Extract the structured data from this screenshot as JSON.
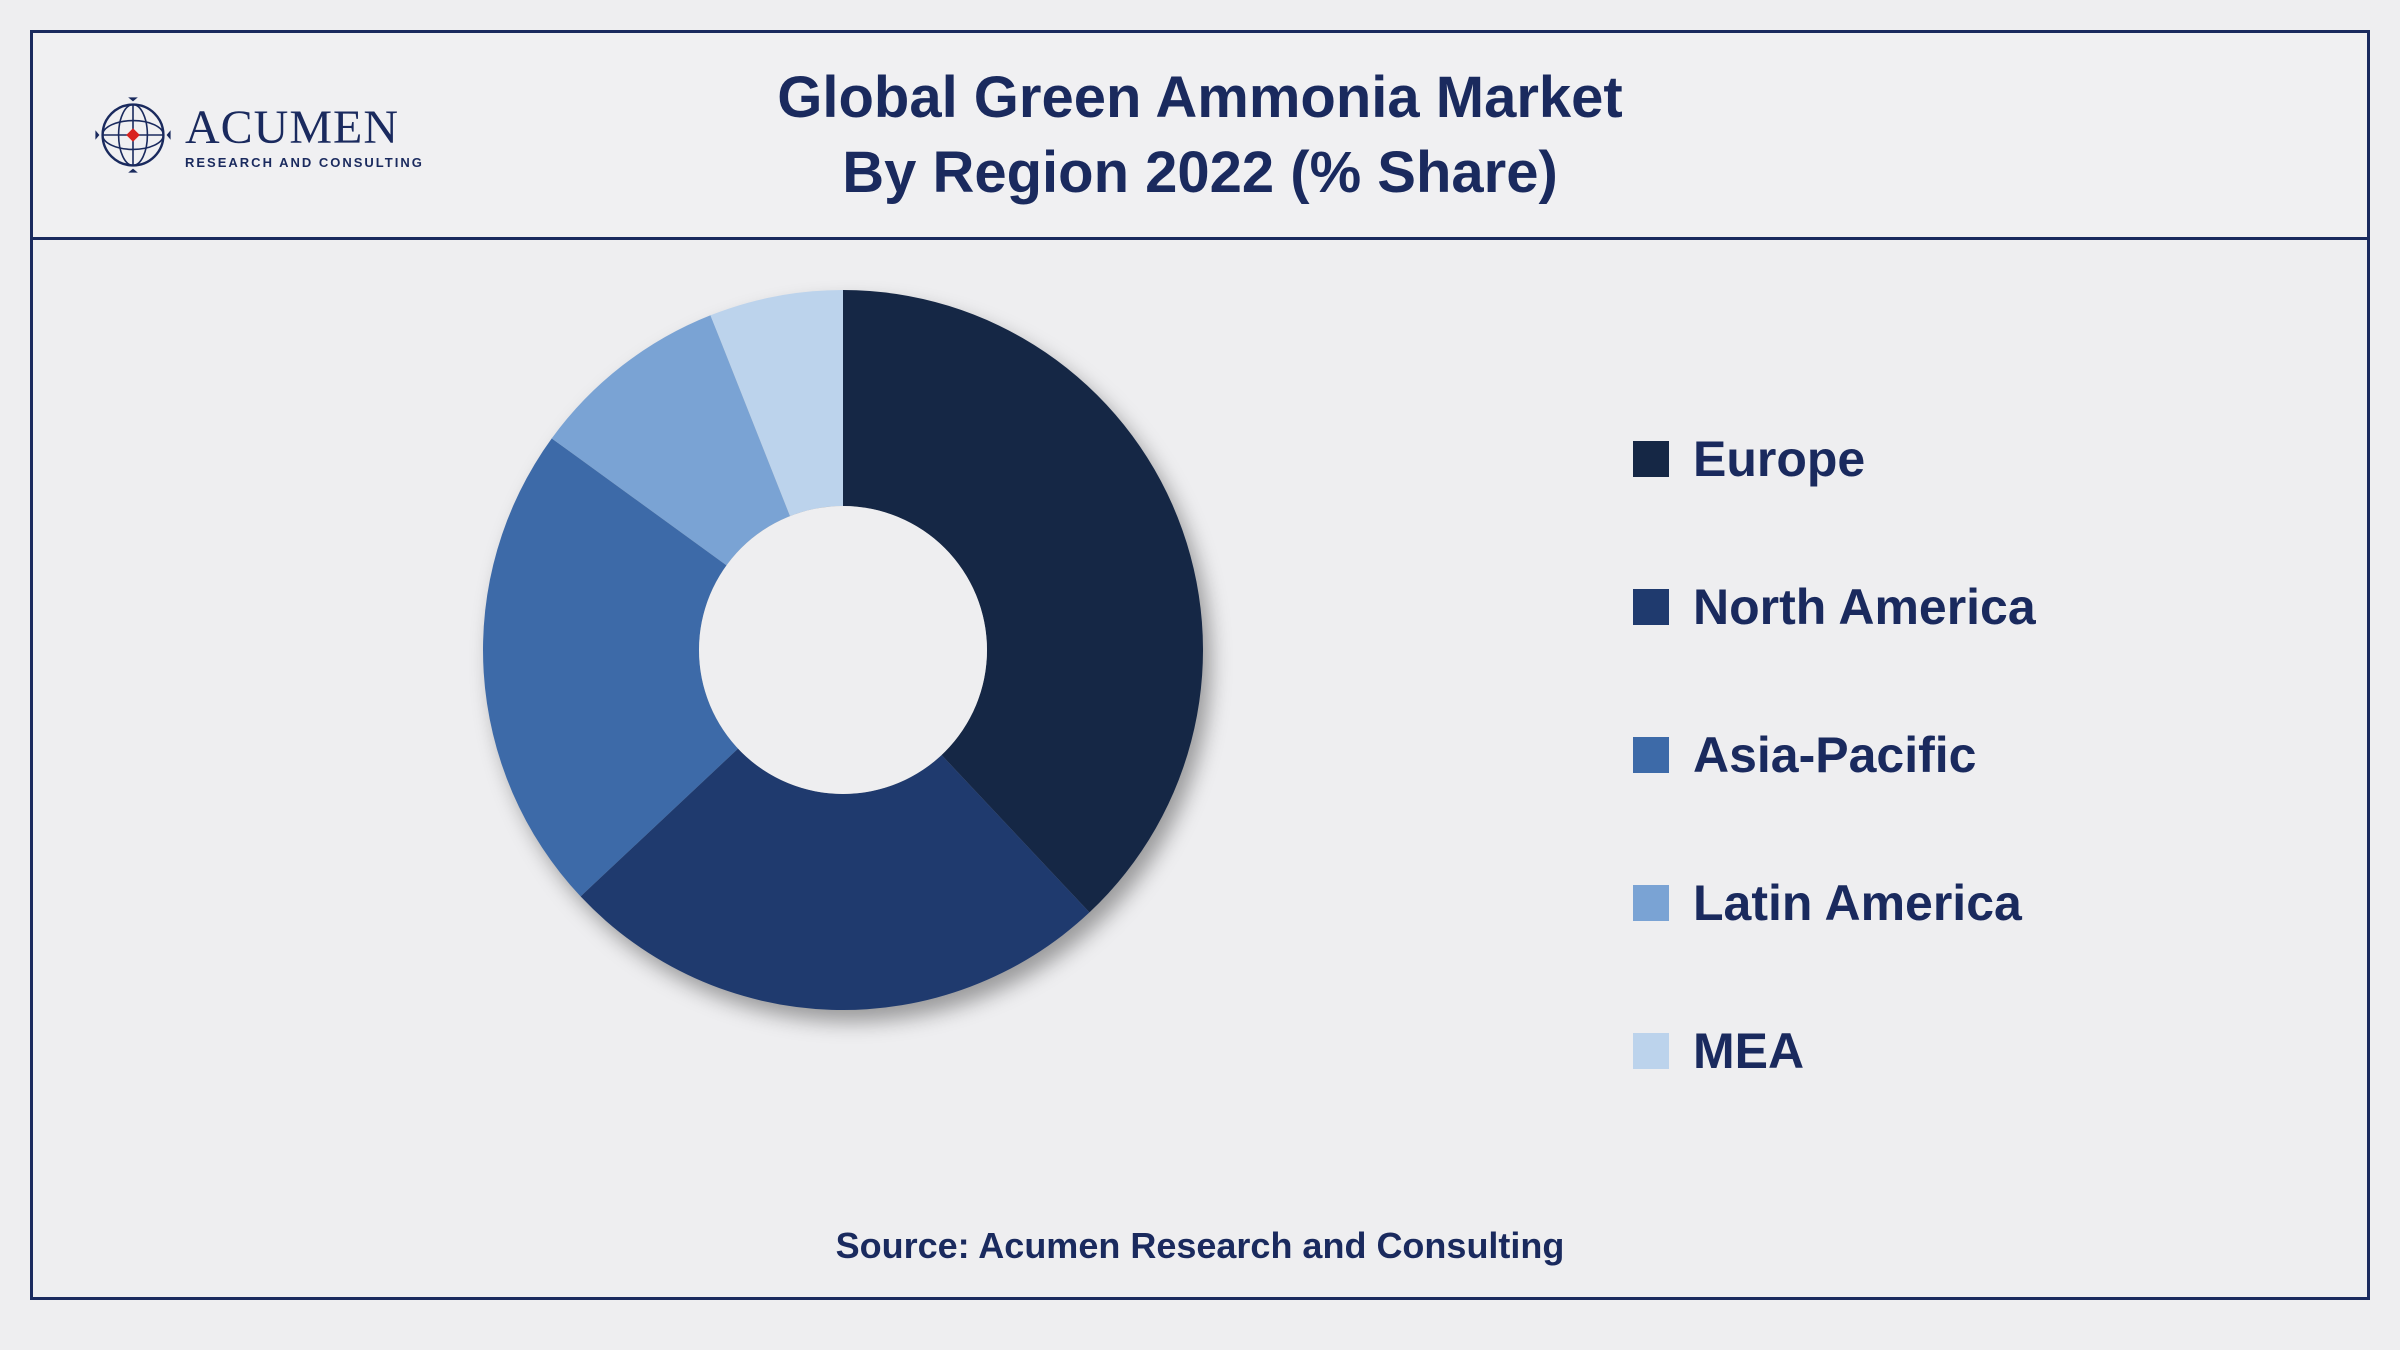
{
  "logo": {
    "main": "ACUMEN",
    "sub": "RESEARCH AND CONSULTING",
    "globe_color": "#1a2a5e",
    "diamond_color": "#d9231f"
  },
  "title": {
    "line1": "Global Green Ammonia  Market",
    "line2": "By Region 2022 (% Share)",
    "fontsize": 58,
    "color": "#1a2a5e"
  },
  "chart": {
    "type": "donut",
    "inner_radius_pct": 40,
    "outer_radius_pct": 100,
    "background_color": "#eeeef0",
    "border_color": "#1a2a5e",
    "shadow": true,
    "segments": [
      {
        "label": "Europe",
        "value": 38,
        "color": "#152745"
      },
      {
        "label": "North America",
        "value": 25,
        "color": "#1f3a6e"
      },
      {
        "label": "Asia-Pacific",
        "value": 22,
        "color": "#3d6aa8"
      },
      {
        "label": "Latin America",
        "value": 9,
        "color": "#7aa3d4"
      },
      {
        "label": "MEA",
        "value": 6,
        "color": "#bcd3ec"
      }
    ],
    "start_angle_deg": -90
  },
  "legend": {
    "fontsize": 50,
    "font_weight": "bold",
    "text_color": "#1a2a5e",
    "swatch_size": 36
  },
  "source": {
    "text": "Source: Acumen Research and Consulting",
    "fontsize": 36,
    "color": "#1a2a5e"
  }
}
